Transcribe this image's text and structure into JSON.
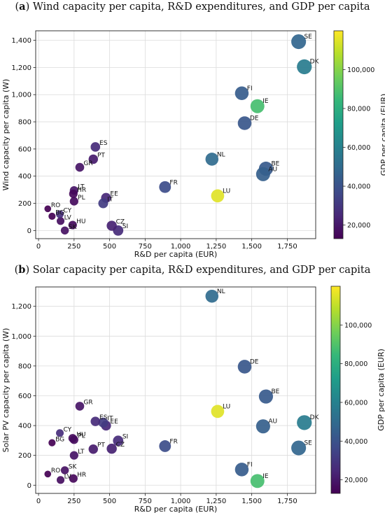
{
  "colorbar": {
    "label": "GDP per capita (EUR)",
    "min": 13000,
    "max": 120000,
    "ticks": [
      "20,000",
      "40,000",
      "60,000",
      "80,000",
      "100,000"
    ],
    "tick_values": [
      20000,
      40000,
      60000,
      80000,
      100000
    ],
    "colormap": "viridis",
    "colormap_stops": [
      "#440154",
      "#482878",
      "#3e4a89",
      "#31688e",
      "#26828e",
      "#1f9e89",
      "#35b779",
      "#6ece58",
      "#b5de2b",
      "#fde725"
    ]
  },
  "chart_data": [
    {
      "type": "scatter",
      "panel": "a",
      "title": "Wind capacity per capita, R&D expenditures, and GDP per capita",
      "xlabel": "R&D per capita (EUR)",
      "ylabel": "Wind capacity per capita (W)",
      "xlim": [
        -20,
        1950
      ],
      "ylim": [
        -60,
        1470
      ],
      "xticks": [
        0,
        250,
        500,
        750,
        1000,
        1250,
        1500,
        1750
      ],
      "xtick_labels": [
        "0",
        "250",
        "500",
        "750",
        "1,000",
        "1,250",
        "1,500",
        "1,750"
      ],
      "yticks": [
        0,
        200,
        400,
        600,
        800,
        1000,
        1200,
        1400
      ],
      "ytick_labels": [
        "0",
        "200",
        "400",
        "600",
        "800",
        "1,000",
        "1,200",
        "1,400"
      ],
      "grid": true,
      "points": [
        {
          "label": "SE",
          "x": 1830,
          "y": 1390,
          "gdp": 48000
        },
        {
          "label": "DK",
          "x": 1870,
          "y": 1205,
          "gdp": 58000
        },
        {
          "label": "FI",
          "x": 1430,
          "y": 1010,
          "gdp": 44000
        },
        {
          "label": "IE",
          "x": 1540,
          "y": 915,
          "gdp": 88000
        },
        {
          "label": "DE",
          "x": 1450,
          "y": 790,
          "gdp": 42000
        },
        {
          "label": "ES",
          "x": 400,
          "y": 615,
          "gdp": 26000
        },
        {
          "label": "PT",
          "x": 385,
          "y": 525,
          "gdp": 21000
        },
        {
          "label": "NL",
          "x": 1220,
          "y": 525,
          "gdp": 50000
        },
        {
          "label": "GR",
          "x": 290,
          "y": 465,
          "gdp": 19000
        },
        {
          "label": "BE",
          "x": 1600,
          "y": 455,
          "gdp": 43000
        },
        {
          "label": "AU",
          "x": 1580,
          "y": 415,
          "gdp": 45000
        },
        {
          "label": "FR",
          "x": 890,
          "y": 320,
          "gdp": 38000
        },
        {
          "label": "LT",
          "x": 250,
          "y": 295,
          "gdp": 19000
        },
        {
          "label": "HR",
          "x": 245,
          "y": 270,
          "gdp": 15000
        },
        {
          "label": "LU",
          "x": 1260,
          "y": 255,
          "gdp": 115000
        },
        {
          "label": "EE",
          "x": 475,
          "y": 240,
          "gdp": 25000
        },
        {
          "label": "PL",
          "x": 250,
          "y": 215,
          "gdp": 16000
        },
        {
          "label": "IT",
          "x": 455,
          "y": 200,
          "gdp": 32000
        },
        {
          "label": "RO",
          "x": 65,
          "y": 160,
          "gdp": 13000
        },
        {
          "label": "BG",
          "x": 95,
          "y": 105,
          "gdp": 12000
        },
        {
          "label": "CY",
          "x": 150,
          "y": 120,
          "gdp": 27000
        },
        {
          "label": "LV",
          "x": 155,
          "y": 70,
          "gdp": 17000
        },
        {
          "label": "HU",
          "x": 240,
          "y": 40,
          "gdp": 16000
        },
        {
          "label": "CZ",
          "x": 515,
          "y": 35,
          "gdp": 23000
        },
        {
          "label": "SK",
          "x": 185,
          "y": 0,
          "gdp": 18000
        },
        {
          "label": "SI",
          "x": 560,
          "y": 0,
          "gdp": 26000
        }
      ]
    },
    {
      "type": "scatter",
      "panel": "b",
      "title": "Solar capacity per capita, R&D expenditures, and GDP per capita",
      "xlabel": "R&D per capita (EUR)",
      "ylabel": "Solar PV capacity per capita (W)",
      "xlim": [
        -20,
        1950
      ],
      "ylim": [
        -55,
        1330
      ],
      "xticks": [
        0,
        250,
        500,
        750,
        1000,
        1250,
        1500,
        1750
      ],
      "xtick_labels": [
        "0",
        "250",
        "500",
        "750",
        "1,000",
        "1,250",
        "1,500",
        "1,750"
      ],
      "yticks": [
        0,
        200,
        400,
        600,
        800,
        1000,
        1200
      ],
      "ytick_labels": [
        "0",
        "200",
        "400",
        "600",
        "800",
        "1,000",
        "1,200"
      ],
      "grid": true,
      "points": [
        {
          "label": "NL",
          "x": 1220,
          "y": 1268,
          "gdp": 50000
        },
        {
          "label": "DE",
          "x": 1450,
          "y": 795,
          "gdp": 42000
        },
        {
          "label": "BE",
          "x": 1600,
          "y": 595,
          "gdp": 43000
        },
        {
          "label": "GR",
          "x": 290,
          "y": 530,
          "gdp": 19000
        },
        {
          "label": "LU",
          "x": 1260,
          "y": 495,
          "gdp": 115000
        },
        {
          "label": "ES",
          "x": 400,
          "y": 428,
          "gdp": 26000
        },
        {
          "label": "IT",
          "x": 455,
          "y": 420,
          "gdp": 32000
        },
        {
          "label": "EE",
          "x": 475,
          "y": 400,
          "gdp": 25000
        },
        {
          "label": "DK",
          "x": 1870,
          "y": 420,
          "gdp": 58000
        },
        {
          "label": "AU",
          "x": 1580,
          "y": 395,
          "gdp": 45000
        },
        {
          "label": "CY",
          "x": 150,
          "y": 350,
          "gdp": 27000
        },
        {
          "label": "HU",
          "x": 240,
          "y": 315,
          "gdp": 16000
        },
        {
          "label": "PL",
          "x": 250,
          "y": 305,
          "gdp": 16000
        },
        {
          "label": "SI",
          "x": 560,
          "y": 298,
          "gdp": 26000
        },
        {
          "label": "BG",
          "x": 95,
          "y": 285,
          "gdp": 12000
        },
        {
          "label": "FR",
          "x": 890,
          "y": 262,
          "gdp": 38000
        },
        {
          "label": "SE",
          "x": 1830,
          "y": 250,
          "gdp": 48000
        },
        {
          "label": "PT",
          "x": 385,
          "y": 242,
          "gdp": 21000
        },
        {
          "label": "CZ",
          "x": 515,
          "y": 245,
          "gdp": 23000
        },
        {
          "label": "LT",
          "x": 250,
          "y": 200,
          "gdp": 19000
        },
        {
          "label": "FI",
          "x": 1430,
          "y": 105,
          "gdp": 44000
        },
        {
          "label": "SK",
          "x": 185,
          "y": 100,
          "gdp": 18000
        },
        {
          "label": "RO",
          "x": 65,
          "y": 75,
          "gdp": 13000
        },
        {
          "label": "LV",
          "x": 155,
          "y": 35,
          "gdp": 17000
        },
        {
          "label": "HR",
          "x": 245,
          "y": 45,
          "gdp": 15000
        },
        {
          "label": "IE",
          "x": 1540,
          "y": 28,
          "gdp": 88000
        }
      ]
    }
  ]
}
